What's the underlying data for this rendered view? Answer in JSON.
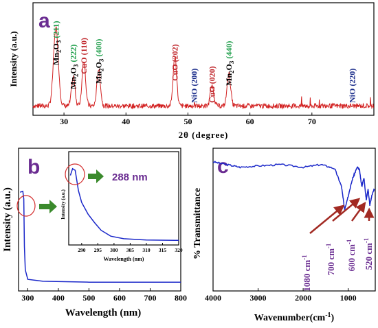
{
  "chart_data": [
    {
      "panel": "a",
      "type": "line",
      "xlabel": "2θ (degree)",
      "ylabel": "Intensity (a.u.)",
      "xlim": [
        25,
        80
      ],
      "xticks": [
        30,
        40,
        50,
        60,
        70
      ],
      "line_color": "#d21f1f",
      "peaks": [
        {
          "x": 28.7,
          "h": 0.95
        },
        {
          "x": 31.5,
          "h": 0.35
        },
        {
          "x": 33.2,
          "h": 0.55
        },
        {
          "x": 35.6,
          "h": 0.45
        },
        {
          "x": 47.9,
          "h": 0.6
        },
        {
          "x": 53.9,
          "h": 0.25
        },
        {
          "x": 56.6,
          "h": 0.4
        }
      ],
      "annotations": [
        {
          "phase": "Mn",
          "sub": "2",
          "rest": "O",
          "sub2": "3",
          "hkl": "(211)",
          "hkl_color": "green",
          "x": 28.7
        },
        {
          "phase": "Mn",
          "sub": "2",
          "rest": "O",
          "sub2": "3",
          "hkl": "(222)",
          "hkl_color": "green",
          "x": 31.5
        },
        {
          "phase": "CuO",
          "hkl": "(110)",
          "hkl_color": "red",
          "x": 33.2
        },
        {
          "phase": "Mn",
          "sub": "2",
          "rest": "O",
          "sub2": "3",
          "hkl": "(400)",
          "hkl_color": "green",
          "x": 35.6
        },
        {
          "phase": "CuO",
          "hkl": "(202)",
          "hkl_color": "red",
          "x": 47.9
        },
        {
          "phase": "NiO",
          "hkl": "(200)",
          "hkl_color": "blue",
          "x": 51.0
        },
        {
          "phase": "CuO",
          "hkl": "(020)",
          "hkl_color": "red",
          "x": 53.9
        },
        {
          "phase": "Mn",
          "sub": "2",
          "rest": "O",
          "sub2": "3",
          "hkl": "(440)",
          "hkl_color": "green",
          "x": 56.6
        },
        {
          "phase": "NiO",
          "hkl": "(220)",
          "hkl_color": "blue",
          "x": 76.5
        }
      ]
    },
    {
      "panel": "b",
      "type": "line",
      "xlabel": "Wavelength (nm)",
      "ylabel": "Intensity (a.u.)",
      "xlim": [
        270,
        800
      ],
      "xticks": [
        300,
        400,
        500,
        600,
        700,
        800
      ],
      "line_color": "#1a27c9",
      "curve": [
        [
          275,
          0.97
        ],
        [
          284,
          0.98
        ],
        [
          287,
          0.9
        ],
        [
          289,
          0.4
        ],
        [
          292,
          0.15
        ],
        [
          300,
          0.05
        ],
        [
          350,
          0.03
        ],
        [
          500,
          0.02
        ],
        [
          800,
          0.02
        ]
      ],
      "inset": {
        "xlabel": "Wavelength (nm)",
        "ylabel": "Intensity (a.u.)",
        "xlim": [
          286,
          320
        ],
        "xticks": [
          290,
          295,
          300,
          305,
          310,
          315,
          320
        ],
        "curve": [
          [
            286.5,
            0.8
          ],
          [
            287.2,
            0.88
          ],
          [
            288,
            0.86
          ],
          [
            289,
            0.62
          ],
          [
            290,
            0.48
          ],
          [
            292,
            0.34
          ],
          [
            294,
            0.24
          ],
          [
            296,
            0.15
          ],
          [
            299,
            0.08
          ],
          [
            303,
            0.05
          ],
          [
            310,
            0.035
          ],
          [
            320,
            0.03
          ]
        ],
        "peak_label": "288 nm"
      }
    },
    {
      "panel": "c",
      "type": "line",
      "xlabel": "Wavenumber(cm⁻¹)",
      "ylabel": "% Transmittance",
      "xlim": [
        4000,
        400
      ],
      "xreversed": true,
      "xticks": [
        4000,
        3000,
        2000,
        1000
      ],
      "line_color": "#1a27c9",
      "curve": [
        [
          4000,
          0.9
        ],
        [
          3700,
          0.88
        ],
        [
          3400,
          0.86
        ],
        [
          3000,
          0.87
        ],
        [
          2500,
          0.88
        ],
        [
          2000,
          0.86
        ],
        [
          1600,
          0.88
        ],
        [
          1300,
          0.85
        ],
        [
          1150,
          0.72
        ],
        [
          1080,
          0.55
        ],
        [
          1000,
          0.65
        ],
        [
          900,
          0.78
        ],
        [
          800,
          0.86
        ],
        [
          750,
          0.84
        ],
        [
          700,
          0.72
        ],
        [
          650,
          0.78
        ],
        [
          600,
          0.62
        ],
        [
          560,
          0.7
        ],
        [
          520,
          0.58
        ],
        [
          470,
          0.66
        ],
        [
          420,
          0.7
        ]
      ],
      "bands": [
        {
          "value": "1080 cm",
          "sup": "-1",
          "x": 1080
        },
        {
          "value": "700 cm",
          "sup": "-1",
          "x": 700
        },
        {
          "value": "600 cm",
          "sup": "-1",
          "x": 600
        },
        {
          "value": "520 cm",
          "sup": "-1",
          "x": 520
        }
      ]
    }
  ],
  "colors": {
    "panel_label": "#6a2c91",
    "arrow": "#a22a23",
    "marker": "#d32a2a",
    "green_arrow": "#3a8a2c"
  }
}
